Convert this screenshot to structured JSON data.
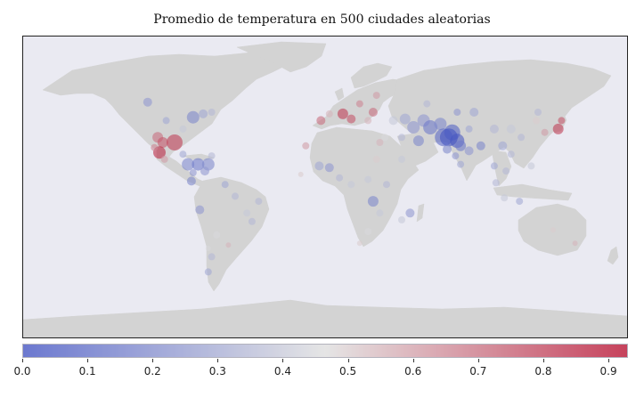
{
  "title": "Promedio de temperatura en 500 ciudades aleatorias",
  "colors": {
    "ocean": "#eaeaf2",
    "land": "#d3d3d3",
    "cold": "#3b4cc0",
    "neutral": "#dddddd",
    "warm": "#b40426"
  },
  "chart_data": {
    "type": "scatter",
    "projection": "equirectangular",
    "x_range": [
      -180,
      180
    ],
    "y_range": [
      -90,
      90
    ],
    "colormap": "coolwarm",
    "color_range": [
      0.0,
      0.93
    ],
    "colorbar_ticks": [
      "0.0",
      "0.1",
      "0.2",
      "0.3",
      "0.4",
      "0.5",
      "0.6",
      "0.7",
      "0.8",
      "0.9"
    ],
    "colorbar_tick_values": [
      0.0,
      0.1,
      0.2,
      0.3,
      0.4,
      0.5,
      0.6,
      0.7,
      0.8,
      0.9
    ],
    "points": [
      {
        "lon": -106,
        "lat": 51,
        "v": 0.25,
        "s": 5
      },
      {
        "lon": -95,
        "lat": 40,
        "v": 0.3,
        "s": 4
      },
      {
        "lon": -79,
        "lat": 42,
        "v": 0.2,
        "s": 7
      },
      {
        "lon": -73,
        "lat": 44,
        "v": 0.3,
        "s": 5
      },
      {
        "lon": -68,
        "lat": 45,
        "v": 0.35,
        "s": 4
      },
      {
        "lon": -85,
        "lat": 35,
        "v": 0.4,
        "s": 4
      },
      {
        "lon": -100,
        "lat": 30,
        "v": 0.7,
        "s": 6
      },
      {
        "lon": -97,
        "lat": 27,
        "v": 0.75,
        "s": 6
      },
      {
        "lon": -90,
        "lat": 27,
        "v": 0.8,
        "s": 9
      },
      {
        "lon": -99,
        "lat": 21,
        "v": 0.85,
        "s": 7
      },
      {
        "lon": -102,
        "lat": 24,
        "v": 0.65,
        "s": 4
      },
      {
        "lon": -96,
        "lat": 17,
        "v": 0.6,
        "s": 4
      },
      {
        "lon": -82,
        "lat": 14,
        "v": 0.2,
        "s": 7
      },
      {
        "lon": -76,
        "lat": 14,
        "v": 0.15,
        "s": 7
      },
      {
        "lon": -70,
        "lat": 14,
        "v": 0.2,
        "s": 7
      },
      {
        "lon": -72,
        "lat": 10,
        "v": 0.25,
        "s": 5
      },
      {
        "lon": -80,
        "lat": 4,
        "v": 0.2,
        "s": 5
      },
      {
        "lon": -79,
        "lat": 9,
        "v": 0.25,
        "s": 4
      },
      {
        "lon": -85,
        "lat": 20,
        "v": 0.3,
        "s": 4
      },
      {
        "lon": -68,
        "lat": 19,
        "v": 0.35,
        "s": 4
      },
      {
        "lon": -60,
        "lat": 2,
        "v": 0.3,
        "s": 4
      },
      {
        "lon": -54,
        "lat": -5,
        "v": 0.35,
        "s": 4
      },
      {
        "lon": -40,
        "lat": -8,
        "v": 0.35,
        "s": 4
      },
      {
        "lon": -47,
        "lat": -15,
        "v": 0.4,
        "s": 4
      },
      {
        "lon": -44,
        "lat": -20,
        "v": 0.35,
        "s": 4
      },
      {
        "lon": -75,
        "lat": -13,
        "v": 0.25,
        "s": 5
      },
      {
        "lon": -65,
        "lat": -28,
        "v": 0.45,
        "s": 4
      },
      {
        "lon": -68,
        "lat": -41,
        "v": 0.35,
        "s": 4
      },
      {
        "lon": -70,
        "lat": -36,
        "v": 0.45,
        "s": 3
      },
      {
        "lon": -70,
        "lat": -50,
        "v": 0.3,
        "s": 4
      },
      {
        "lon": -58,
        "lat": -34,
        "v": 0.55,
        "s": 3
      },
      {
        "lon": -3,
        "lat": 40,
        "v": 0.7,
        "s": 5
      },
      {
        "lon": 2,
        "lat": 44,
        "v": 0.55,
        "s": 4
      },
      {
        "lon": 10,
        "lat": 44,
        "v": 0.8,
        "s": 6
      },
      {
        "lon": 15,
        "lat": 41,
        "v": 0.75,
        "s": 5
      },
      {
        "lon": 20,
        "lat": 50,
        "v": 0.65,
        "s": 4
      },
      {
        "lon": 28,
        "lat": 45,
        "v": 0.7,
        "s": 5
      },
      {
        "lon": 30,
        "lat": 55,
        "v": 0.6,
        "s": 4
      },
      {
        "lon": 25,
        "lat": 40,
        "v": 0.55,
        "s": 4
      },
      {
        "lon": 40,
        "lat": 40,
        "v": 0.4,
        "s": 5
      },
      {
        "lon": 47,
        "lat": 41,
        "v": 0.3,
        "s": 6
      },
      {
        "lon": 52,
        "lat": 36,
        "v": 0.25,
        "s": 7
      },
      {
        "lon": 58,
        "lat": 40,
        "v": 0.25,
        "s": 7
      },
      {
        "lon": 55,
        "lat": 28,
        "v": 0.2,
        "s": 6
      },
      {
        "lon": 62,
        "lat": 36,
        "v": 0.15,
        "s": 8
      },
      {
        "lon": 68,
        "lat": 38,
        "v": 0.2,
        "s": 7
      },
      {
        "lon": 70,
        "lat": 30,
        "v": 0.1,
        "s": 10
      },
      {
        "lon": 75,
        "lat": 33,
        "v": 0.08,
        "s": 9
      },
      {
        "lon": 78,
        "lat": 28,
        "v": 0.05,
        "s": 8
      },
      {
        "lon": 73,
        "lat": 30,
        "v": 0.03,
        "s": 10
      },
      {
        "lon": 80,
        "lat": 25,
        "v": 0.15,
        "s": 6
      },
      {
        "lon": 72,
        "lat": 23,
        "v": 0.2,
        "s": 5
      },
      {
        "lon": 77,
        "lat": 19,
        "v": 0.25,
        "s": 4
      },
      {
        "lon": 80,
        "lat": 14,
        "v": 0.3,
        "s": 4
      },
      {
        "lon": 85,
        "lat": 22,
        "v": 0.25,
        "s": 5
      },
      {
        "lon": 92,
        "lat": 25,
        "v": 0.2,
        "s": 5
      },
      {
        "lon": 100,
        "lat": 35,
        "v": 0.35,
        "s": 5
      },
      {
        "lon": 110,
        "lat": 35,
        "v": 0.4,
        "s": 5
      },
      {
        "lon": 116,
        "lat": 30,
        "v": 0.35,
        "s": 4
      },
      {
        "lon": 105,
        "lat": 25,
        "v": 0.3,
        "s": 5
      },
      {
        "lon": 110,
        "lat": 20,
        "v": 0.35,
        "s": 4
      },
      {
        "lon": 100,
        "lat": 13,
        "v": 0.3,
        "s": 4
      },
      {
        "lon": 107,
        "lat": 10,
        "v": 0.35,
        "s": 4
      },
      {
        "lon": 101,
        "lat": 3,
        "v": 0.35,
        "s": 4
      },
      {
        "lon": 106,
        "lat": -6,
        "v": 0.4,
        "s": 4
      },
      {
        "lon": 115,
        "lat": -8,
        "v": 0.3,
        "s": 4
      },
      {
        "lon": 122,
        "lat": 13,
        "v": 0.4,
        "s": 4
      },
      {
        "lon": 125,
        "lat": 40,
        "v": 0.5,
        "s": 4
      },
      {
        "lon": 130,
        "lat": 33,
        "v": 0.6,
        "s": 4
      },
      {
        "lon": 138,
        "lat": 35,
        "v": 0.8,
        "s": 6
      },
      {
        "lon": 140,
        "lat": 40,
        "v": 0.75,
        "s": 4
      },
      {
        "lon": 126,
        "lat": 45,
        "v": 0.35,
        "s": 4
      },
      {
        "lon": 88,
        "lat": 45,
        "v": 0.3,
        "s": 5
      },
      {
        "lon": 78,
        "lat": 45,
        "v": 0.25,
        "s": 4
      },
      {
        "lon": 60,
        "lat": 50,
        "v": 0.35,
        "s": 4
      },
      {
        "lon": 85,
        "lat": 35,
        "v": 0.3,
        "s": 4
      },
      {
        "lon": 45,
        "lat": 30,
        "v": 0.35,
        "s": 4
      },
      {
        "lon": 35,
        "lat": 30,
        "v": 0.45,
        "s": 4
      },
      {
        "lon": 45,
        "lat": 17,
        "v": 0.4,
        "s": 4
      },
      {
        "lon": 30,
        "lat": 17,
        "v": 0.5,
        "s": 4
      },
      {
        "lon": 32,
        "lat": 27,
        "v": 0.55,
        "s": 4
      },
      {
        "lon": -4,
        "lat": 13,
        "v": 0.3,
        "s": 5
      },
      {
        "lon": 2,
        "lat": 12,
        "v": 0.25,
        "s": 5
      },
      {
        "lon": 8,
        "lat": 6,
        "v": 0.35,
        "s": 4
      },
      {
        "lon": 15,
        "lat": 2,
        "v": 0.4,
        "s": 4
      },
      {
        "lon": 25,
        "lat": 5,
        "v": 0.4,
        "s": 4
      },
      {
        "lon": 36,
        "lat": 2,
        "v": 0.35,
        "s": 4
      },
      {
        "lon": 28,
        "lat": -8,
        "v": 0.2,
        "s": 6
      },
      {
        "lon": 32,
        "lat": -15,
        "v": 0.4,
        "s": 4
      },
      {
        "lon": 45,
        "lat": -19,
        "v": 0.4,
        "s": 4
      },
      {
        "lon": 50,
        "lat": -15,
        "v": 0.25,
        "s": 5
      },
      {
        "lon": 25,
        "lat": -26,
        "v": 0.45,
        "s": 4
      },
      {
        "lon": 20,
        "lat": -33,
        "v": 0.5,
        "s": 3
      },
      {
        "lon": -12,
        "lat": 25,
        "v": 0.6,
        "s": 4
      },
      {
        "lon": -15,
        "lat": 8,
        "v": 0.5,
        "s": 3
      },
      {
        "lon": 135,
        "lat": -25,
        "v": 0.5,
        "s": 3
      },
      {
        "lon": 148,
        "lat": -33,
        "v": 0.55,
        "s": 3
      }
    ]
  }
}
